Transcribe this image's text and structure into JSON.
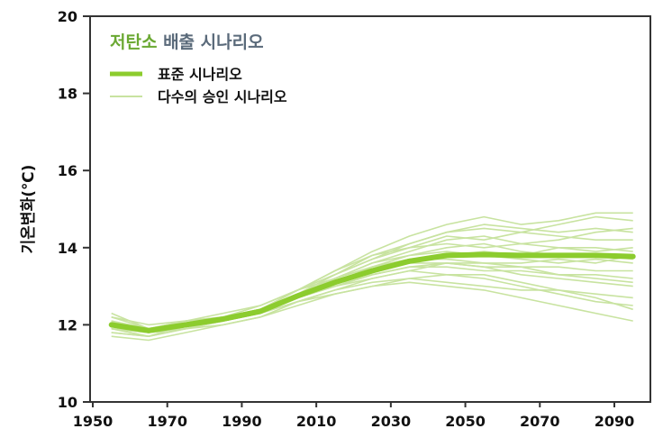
{
  "chart_data": {
    "type": "line",
    "title_part1": "저탄소",
    "title_part2": "배출 시나리오",
    "xlabel": "",
    "ylabel": "기온변화(℃)",
    "xlim": [
      1950,
      2098
    ],
    "ylim": [
      10,
      20
    ],
    "xticks": [
      "1950",
      "1970",
      "1990",
      "2010",
      "2030",
      "2050",
      "2070",
      "2090"
    ],
    "yticks": [
      "10",
      "12",
      "14",
      "16",
      "18",
      "20"
    ],
    "grid": false,
    "legend_position": "top-left",
    "colors": {
      "title1": "#6aa832",
      "title2": "#5a6a7a",
      "main": "#8ccc2e",
      "ensemble": "#c8e3a0",
      "axis": "#333333"
    },
    "legend": {
      "main": "표준 시나리오",
      "ensemble": "다수의 승인 시나리오"
    },
    "x": [
      1955,
      1965,
      1975,
      1985,
      1995,
      2005,
      2015,
      2025,
      2035,
      2045,
      2055,
      2065,
      2075,
      2085,
      2095
    ],
    "main_series": {
      "name": "표준 시나리오",
      "values": [
        12.0,
        11.85,
        12.0,
        12.15,
        12.35,
        12.75,
        13.1,
        13.4,
        13.65,
        13.8,
        13.82,
        13.8,
        13.8,
        13.8,
        13.77
      ]
    },
    "ensemble_series": [
      [
        12.3,
        11.9,
        12.0,
        12.2,
        12.4,
        12.9,
        13.4,
        13.9,
        14.3,
        14.6,
        14.8,
        14.6,
        14.7,
        14.9,
        14.9
      ],
      [
        11.8,
        11.7,
        11.9,
        12.1,
        12.3,
        12.8,
        13.3,
        13.8,
        14.1,
        14.4,
        14.5,
        14.4,
        14.6,
        14.8,
        14.7
      ],
      [
        12.1,
        11.8,
        12.0,
        12.2,
        12.5,
        12.9,
        13.2,
        13.6,
        13.9,
        14.2,
        14.3,
        14.1,
        14.2,
        14.4,
        14.5
      ],
      [
        11.9,
        11.8,
        11.9,
        12.1,
        12.3,
        12.6,
        12.9,
        13.2,
        13.4,
        13.3,
        13.2,
        13.0,
        12.8,
        12.6,
        12.5
      ],
      [
        12.0,
        11.9,
        12.0,
        12.2,
        12.3,
        12.6,
        12.8,
        13.0,
        13.1,
        13.0,
        12.9,
        12.7,
        12.5,
        12.3,
        12.1
      ],
      [
        12.2,
        11.9,
        12.1,
        12.2,
        12.4,
        12.8,
        13.1,
        13.4,
        13.6,
        13.6,
        13.5,
        13.3,
        13.2,
        13.1,
        13.0
      ],
      [
        11.7,
        11.6,
        11.8,
        12.0,
        12.2,
        12.6,
        12.9,
        13.1,
        13.2,
        13.1,
        13.0,
        12.9,
        12.9,
        12.8,
        12.7
      ],
      [
        12.0,
        11.9,
        12.1,
        12.3,
        12.5,
        12.9,
        13.3,
        13.7,
        14.0,
        14.1,
        14.0,
        14.1,
        14.0,
        13.9,
        14.0
      ],
      [
        12.1,
        11.8,
        11.9,
        12.1,
        12.4,
        12.8,
        13.2,
        13.5,
        13.8,
        13.9,
        13.8,
        13.7,
        13.6,
        13.7,
        13.6
      ],
      [
        11.9,
        11.7,
        12.0,
        12.1,
        12.3,
        12.7,
        13.0,
        13.3,
        13.5,
        13.5,
        13.4,
        13.4,
        13.3,
        13.3,
        13.2
      ],
      [
        12.2,
        12.0,
        12.1,
        12.2,
        12.4,
        12.9,
        13.4,
        13.8,
        14.0,
        14.3,
        14.2,
        14.4,
        14.3,
        14.2,
        14.2
      ],
      [
        11.9,
        11.8,
        11.9,
        12.0,
        12.2,
        12.5,
        12.8,
        13.0,
        13.2,
        13.3,
        13.3,
        13.1,
        12.9,
        12.7,
        12.4
      ],
      [
        12.0,
        11.9,
        12.0,
        12.2,
        12.4,
        12.8,
        13.1,
        13.5,
        13.7,
        13.8,
        13.9,
        13.8,
        14.0,
        14.0,
        13.9
      ],
      [
        12.1,
        11.8,
        12.0,
        12.2,
        12.4,
        12.8,
        13.2,
        13.6,
        13.8,
        14.0,
        14.1,
        13.9,
        13.8,
        13.8,
        13.7
      ],
      [
        11.8,
        11.7,
        11.9,
        12.1,
        12.3,
        12.7,
        13.0,
        13.2,
        13.4,
        13.6,
        13.6,
        13.5,
        13.5,
        13.4,
        13.4
      ],
      [
        12.1,
        11.9,
        12.0,
        12.2,
        12.4,
        12.8,
        13.2,
        13.5,
        13.7,
        13.7,
        13.6,
        13.6,
        13.7,
        13.6,
        13.8
      ],
      [
        12.0,
        11.8,
        12.0,
        12.2,
        12.4,
        12.9,
        13.3,
        13.7,
        14.1,
        14.4,
        14.6,
        14.5,
        14.4,
        14.5,
        14.4
      ],
      [
        11.9,
        11.8,
        12.0,
        12.1,
        12.3,
        12.7,
        13.0,
        13.3,
        13.5,
        13.6,
        13.5,
        13.5,
        13.3,
        13.2,
        13.1
      ]
    ]
  }
}
